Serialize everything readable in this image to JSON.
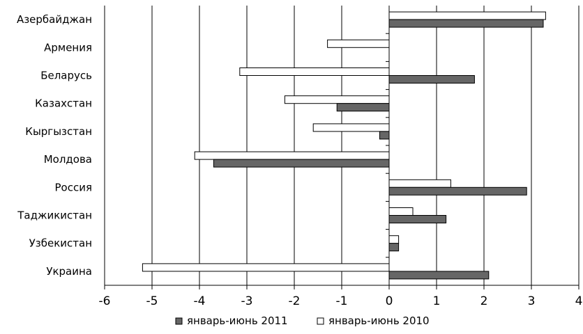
{
  "chart_data": {
    "type": "bar",
    "orientation": "horizontal",
    "categories": [
      "Азербайджан",
      "Армения",
      "Беларусь",
      "Казахстан",
      "Кыргызстан",
      "Молдова",
      "Россия",
      "Таджикистан",
      "Узбекистан",
      "Украина"
    ],
    "series": [
      {
        "name": "январь-июнь 2011",
        "color": "#666666",
        "values": [
          3.25,
          0,
          1.8,
          -1.1,
          -0.2,
          -3.7,
          2.9,
          1.2,
          0.2,
          2.1
        ]
      },
      {
        "name": "январь-июнь 2010",
        "color": "#ffffff",
        "values": [
          3.3,
          -1.3,
          -3.15,
          -2.2,
          -1.6,
          -4.1,
          1.3,
          0.5,
          0.2,
          -5.2
        ]
      }
    ],
    "xlim": [
      -6,
      4
    ],
    "xticks": [
      "-6",
      "-5",
      "-4",
      "-3",
      "-2",
      "-1",
      "0",
      "1",
      "2",
      "3",
      "4"
    ],
    "grid": "vertical",
    "legend_position": "bottom"
  }
}
